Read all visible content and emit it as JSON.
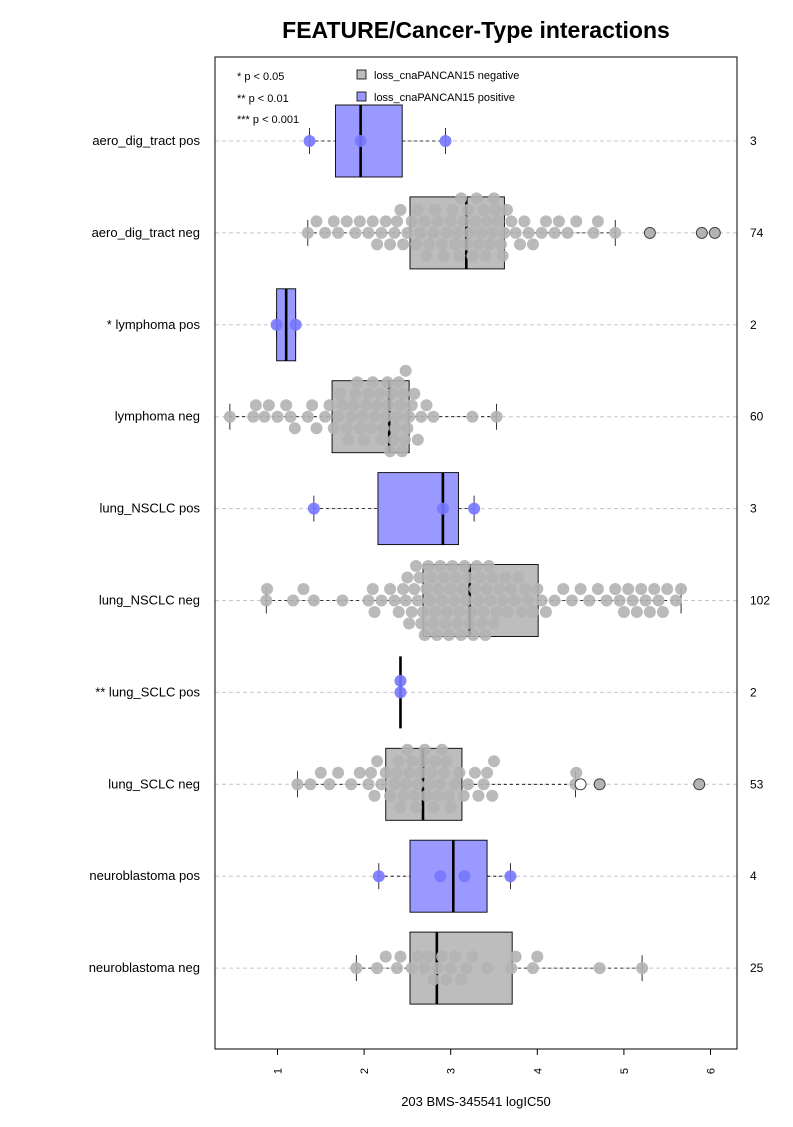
{
  "chart_data": {
    "type": "box",
    "title": "FEATURE/Cancer-Type interactions",
    "xlabel": "203 BMS-345541 logIC50",
    "xlim": [
      0.3,
      6.3
    ],
    "xticks": [
      1,
      2,
      3,
      4,
      5,
      6
    ],
    "grid": "horizontal dashed",
    "legend": {
      "placement": "top-left",
      "significance": [
        "* p < 0.05",
        "** p < 0.01",
        "*** p < 0.001"
      ],
      "entries": [
        {
          "label": "loss_cnaPANCAN15 negative",
          "color": "#bdbdbd"
        },
        {
          "label": "loss_cnaPANCAN15 positive",
          "color": "#9999ff"
        }
      ]
    },
    "colors": {
      "negative_box": "#bdbdbd",
      "positive_box": "#9999ff",
      "negative_point": "#b3b3b3",
      "positive_point": "#7777ff"
    },
    "groups": [
      {
        "label": "aero_dig_tract pos",
        "n": "3",
        "kind": "pos",
        "q1": 1.67,
        "median": 1.96,
        "q3": 2.44,
        "wlo": 1.37,
        "whi": 2.94,
        "points": [
          1.37,
          1.96,
          2.94
        ],
        "outliers": []
      },
      {
        "label": "aero_dig_tract neg",
        "n": "74",
        "kind": "neg",
        "q1": 2.53,
        "median": 3.18,
        "q3": 3.62,
        "wlo": 1.35,
        "whi": 4.9,
        "points": [
          1.35,
          1.45,
          1.55,
          1.65,
          1.7,
          1.8,
          1.9,
          1.95,
          2.05,
          2.1,
          2.15,
          2.2,
          2.25,
          2.3,
          2.35,
          2.38,
          2.42,
          2.45,
          2.5,
          2.55,
          2.6,
          2.62,
          2.65,
          2.7,
          2.72,
          2.75,
          2.8,
          2.82,
          2.85,
          2.9,
          2.92,
          2.95,
          3.0,
          3.02,
          3.05,
          3.08,
          3.1,
          3.12,
          3.15,
          3.18,
          3.2,
          3.22,
          3.25,
          3.28,
          3.3,
          3.32,
          3.35,
          3.38,
          3.4,
          3.42,
          3.45,
          3.48,
          3.5,
          3.52,
          3.55,
          3.58,
          3.6,
          3.62,
          3.65,
          3.7,
          3.75,
          3.8,
          3.85,
          3.9,
          3.95,
          4.05,
          4.1,
          4.2,
          4.25,
          4.35,
          4.45,
          4.65,
          4.7,
          4.9
        ],
        "outliers": [
          5.3,
          5.9,
          6.05
        ]
      },
      {
        "label": "* lymphoma pos",
        "n": "2",
        "kind": "pos",
        "q1": 0.99,
        "median": 1.1,
        "q3": 1.21,
        "wlo": 0.99,
        "whi": 1.21,
        "points": [
          0.99,
          1.21
        ],
        "outliers": []
      },
      {
        "label": "lymphoma neg",
        "n": "60",
        "kind": "neg",
        "q1": 1.63,
        "median": 2.29,
        "q3": 2.52,
        "wlo": 0.45,
        "whi": 3.53,
        "points": [
          0.45,
          0.72,
          0.75,
          0.85,
          0.9,
          1.0,
          1.1,
          1.15,
          1.2,
          1.35,
          1.4,
          1.45,
          1.55,
          1.6,
          1.65,
          1.7,
          1.72,
          1.75,
          1.8,
          1.82,
          1.85,
          1.88,
          1.9,
          1.92,
          1.95,
          1.98,
          2.0,
          2.02,
          2.05,
          2.08,
          2.1,
          2.12,
          2.15,
          2.18,
          2.2,
          2.22,
          2.25,
          2.27,
          2.28,
          2.3,
          2.32,
          2.34,
          2.36,
          2.38,
          2.4,
          2.42,
          2.44,
          2.45,
          2.47,
          2.48,
          2.5,
          2.52,
          2.55,
          2.58,
          2.62,
          2.66,
          2.72,
          2.8,
          3.25,
          3.53
        ],
        "outliers": []
      },
      {
        "label": "lung_NSCLC pos",
        "n": "3",
        "kind": "pos",
        "q1": 2.16,
        "median": 2.91,
        "q3": 3.09,
        "wlo": 1.42,
        "whi": 3.27,
        "points": [
          1.42,
          2.91,
          3.27
        ],
        "outliers": []
      },
      {
        "label": "lung_NSCLC neg",
        "n": "102",
        "kind": "neg",
        "q1": 2.68,
        "median": 3.22,
        "q3": 4.01,
        "wlo": 0.87,
        "whi": 5.66,
        "points": [
          0.87,
          0.88,
          1.18,
          1.3,
          1.42,
          1.75,
          2.05,
          2.1,
          2.12,
          2.2,
          2.3,
          2.35,
          2.4,
          2.45,
          2.48,
          2.5,
          2.52,
          2.55,
          2.58,
          2.6,
          2.62,
          2.64,
          2.66,
          2.68,
          2.7,
          2.72,
          2.74,
          2.76,
          2.78,
          2.8,
          2.82,
          2.84,
          2.86,
          2.88,
          2.9,
          2.92,
          2.94,
          2.96,
          2.98,
          3.0,
          3.02,
          3.04,
          3.06,
          3.08,
          3.1,
          3.12,
          3.14,
          3.16,
          3.18,
          3.2,
          3.22,
          3.24,
          3.26,
          3.28,
          3.3,
          3.32,
          3.34,
          3.36,
          3.38,
          3.4,
          3.42,
          3.44,
          3.46,
          3.48,
          3.5,
          3.53,
          3.56,
          3.6,
          3.63,
          3.66,
          3.7,
          3.74,
          3.78,
          3.82,
          3.86,
          3.9,
          3.95,
          4.0,
          4.05,
          4.1,
          4.2,
          4.3,
          4.4,
          4.5,
          4.6,
          4.7,
          4.8,
          4.9,
          4.95,
          5.0,
          5.05,
          5.1,
          5.15,
          5.2,
          5.25,
          5.3,
          5.35,
          5.4,
          5.45,
          5.5,
          5.6,
          5.66
        ],
        "outliers": []
      },
      {
        "label": "** lung_SCLC pos",
        "n": "2",
        "kind": "pos",
        "q1": 2.42,
        "median": 2.42,
        "q3": 2.42,
        "wlo": 2.42,
        "whi": 2.42,
        "points": [
          2.42,
          2.42
        ],
        "outliers": []
      },
      {
        "label": "lung_SCLC neg",
        "n": "53",
        "kind": "neg",
        "q1": 2.25,
        "median": 2.68,
        "q3": 3.13,
        "wlo": 1.23,
        "whi": 4.44,
        "points": [
          1.23,
          1.38,
          1.5,
          1.6,
          1.7,
          1.85,
          1.95,
          2.05,
          2.08,
          2.12,
          2.15,
          2.2,
          2.25,
          2.3,
          2.35,
          2.38,
          2.4,
          2.42,
          2.45,
          2.48,
          2.5,
          2.52,
          2.55,
          2.58,
          2.6,
          2.62,
          2.65,
          2.68,
          2.7,
          2.72,
          2.75,
          2.78,
          2.8,
          2.82,
          2.85,
          2.88,
          2.9,
          2.92,
          2.95,
          2.98,
          3.0,
          3.05,
          3.1,
          3.15,
          3.2,
          3.28,
          3.32,
          3.38,
          3.42,
          3.48,
          3.5,
          4.44,
          4.45
        ],
        "outliers": [
          4.5,
          4.72,
          5.87
        ]
      },
      {
        "label": "neuroblastoma pos",
        "n": "4",
        "kind": "pos",
        "q1": 2.53,
        "median": 3.03,
        "q3": 3.42,
        "wlo": 2.17,
        "whi": 3.69,
        "points": [
          2.17,
          2.88,
          3.16,
          3.69
        ],
        "outliers": []
      },
      {
        "label": "neuroblastoma neg",
        "n": "25",
        "kind": "neg",
        "q1": 2.53,
        "median": 2.84,
        "q3": 3.71,
        "wlo": 1.91,
        "whi": 5.21,
        "points": [
          1.91,
          2.15,
          2.25,
          2.38,
          2.42,
          2.55,
          2.62,
          2.7,
          2.75,
          2.8,
          2.85,
          2.9,
          2.95,
          3.0,
          3.05,
          3.12,
          3.18,
          3.25,
          3.42,
          3.7,
          3.75,
          3.95,
          4.0,
          4.72,
          5.21
        ],
        "outliers": []
      }
    ]
  }
}
